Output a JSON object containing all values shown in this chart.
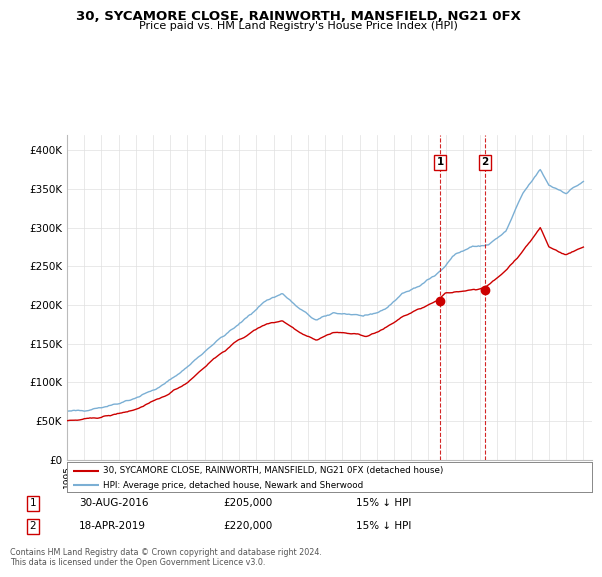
{
  "title": "30, SYCAMORE CLOSE, RAINWORTH, MANSFIELD, NG21 0FX",
  "subtitle": "Price paid vs. HM Land Registry's House Price Index (HPI)",
  "ylim": [
    0,
    420000
  ],
  "yticks": [
    0,
    50000,
    100000,
    150000,
    200000,
    250000,
    300000,
    350000,
    400000
  ],
  "ytick_labels": [
    "£0",
    "£50K",
    "£100K",
    "£150K",
    "£200K",
    "£250K",
    "£300K",
    "£350K",
    "£400K"
  ],
  "xlim_start": 1995,
  "xlim_end": 2025.5,
  "sale1_date": "30-AUG-2016",
  "sale1_price": 205000,
  "sale1_year": 2016.667,
  "sale1_hpi": "15% ↓ HPI",
  "sale2_date": "18-APR-2019",
  "sale2_price": 220000,
  "sale2_year": 2019.292,
  "sale2_hpi": "15% ↓ HPI",
  "legend_house": "30, SYCAMORE CLOSE, RAINWORTH, MANSFIELD, NG21 0FX (detached house)",
  "legend_hpi": "HPI: Average price, detached house, Newark and Sherwood",
  "footer": "Contains HM Land Registry data © Crown copyright and database right 2024.\nThis data is licensed under the Open Government Licence v3.0.",
  "house_color": "#cc0000",
  "hpi_color": "#7bafd4",
  "vline_color": "#cc0000",
  "grid_color": "#e0e0e0",
  "hpi_anchors_t": [
    1995.0,
    1996.0,
    1997.5,
    1999.0,
    2000.5,
    2002.0,
    2003.5,
    2005.0,
    2006.5,
    2007.5,
    2008.5,
    2009.5,
    2010.5,
    2011.5,
    2012.5,
    2013.5,
    2014.5,
    2015.5,
    2016.5,
    2017.5,
    2018.5,
    2019.5,
    2020.5,
    2021.5,
    2022.5,
    2023.0,
    2024.0,
    2025.0
  ],
  "hpi_anchors_p": [
    62000,
    64000,
    70000,
    80000,
    95000,
    120000,
    150000,
    175000,
    205000,
    215000,
    195000,
    180000,
    190000,
    188000,
    185000,
    195000,
    215000,
    225000,
    240000,
    265000,
    275000,
    278000,
    295000,
    345000,
    375000,
    355000,
    345000,
    360000
  ],
  "prop_anchors_t": [
    1995.0,
    1996.0,
    1997.5,
    1999.0,
    2000.5,
    2002.0,
    2003.5,
    2005.0,
    2006.5,
    2007.5,
    2008.5,
    2009.5,
    2010.5,
    2011.5,
    2012.5,
    2013.5,
    2014.5,
    2015.5,
    2016.5,
    2017.0,
    2018.5,
    2019.3,
    2020.5,
    2021.5,
    2022.5,
    2023.0,
    2024.0,
    2025.0
  ],
  "prop_anchors_p": [
    50000,
    52000,
    57000,
    65000,
    80000,
    100000,
    130000,
    155000,
    175000,
    180000,
    165000,
    155000,
    165000,
    163000,
    160000,
    170000,
    185000,
    195000,
    205000,
    215000,
    220000,
    222000,
    245000,
    270000,
    300000,
    275000,
    265000,
    275000
  ]
}
